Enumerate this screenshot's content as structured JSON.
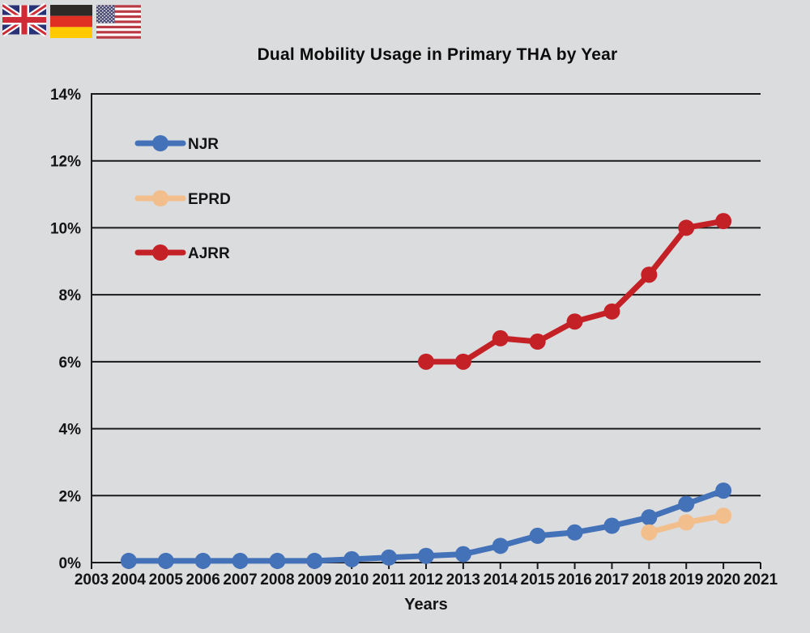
{
  "flags": {
    "uk_label": "United Kingdom flag",
    "germany_label": "Germany flag",
    "usa_label": "United States flag"
  },
  "chart_data": {
    "type": "line",
    "title": "Dual Mobility Usage in Primary THA by Year",
    "xlabel": "Years",
    "ylabel": "",
    "xlim": [
      2003,
      2021
    ],
    "ylim": [
      0,
      14
    ],
    "x_ticks": [
      2003,
      2004,
      2005,
      2006,
      2007,
      2008,
      2009,
      2010,
      2011,
      2012,
      2013,
      2014,
      2015,
      2016,
      2017,
      2018,
      2019,
      2020,
      2021
    ],
    "y_ticks": [
      0,
      2,
      4,
      6,
      8,
      10,
      12,
      14
    ],
    "y_tick_suffix": "%",
    "grid": "horizontal",
    "legend_position": "inside-top-left",
    "axis_color": "#1a1a1a",
    "series": [
      {
        "name": "NJR",
        "color": "#4472B9",
        "x": [
          2004,
          2005,
          2006,
          2007,
          2008,
          2009,
          2010,
          2011,
          2012,
          2013,
          2014,
          2015,
          2016,
          2017,
          2018,
          2019,
          2020
        ],
        "values": [
          0.05,
          0.05,
          0.05,
          0.05,
          0.05,
          0.05,
          0.1,
          0.15,
          0.2,
          0.25,
          0.5,
          0.8,
          0.9,
          1.1,
          1.35,
          1.75,
          2.15
        ]
      },
      {
        "name": "EPRD",
        "color": "#F2BE8C",
        "x": [
          2018,
          2019,
          2020
        ],
        "values": [
          0.9,
          1.2,
          1.4
        ]
      },
      {
        "name": "AJRR",
        "color": "#C42127",
        "x": [
          2012,
          2013,
          2014,
          2015,
          2016,
          2017,
          2018,
          2019,
          2020
        ],
        "values": [
          6.0,
          6.0,
          6.7,
          6.6,
          7.2,
          7.5,
          8.6,
          10.0,
          10.2
        ]
      }
    ]
  }
}
